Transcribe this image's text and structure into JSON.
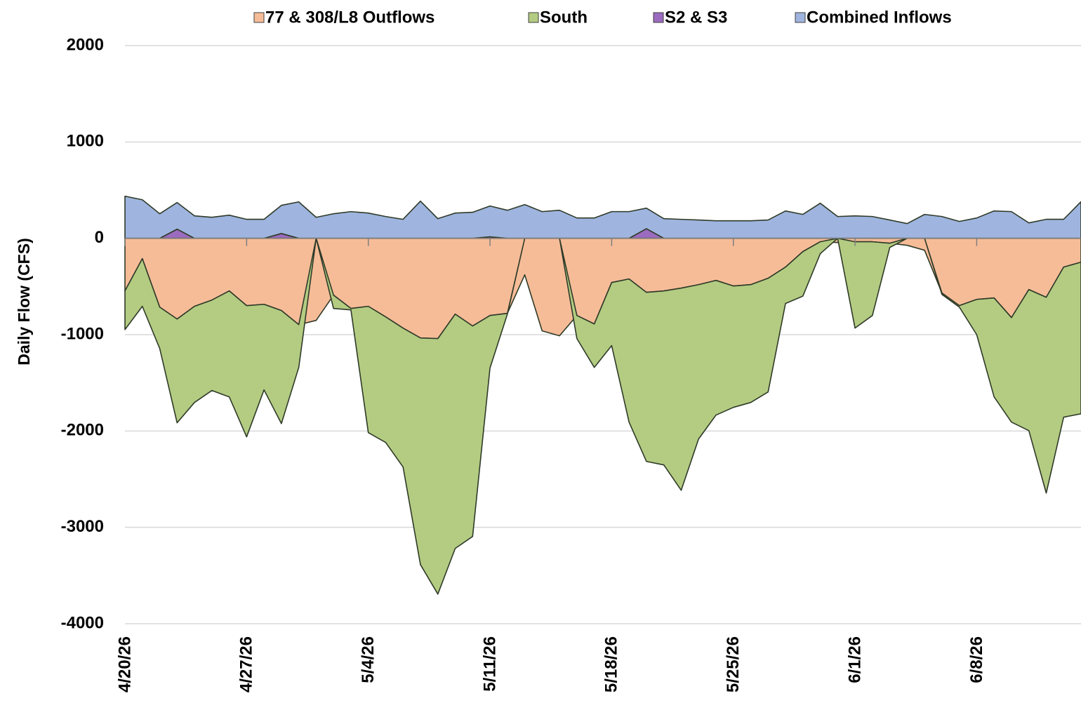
{
  "chart_data": {
    "type": "area",
    "stacked": true,
    "y_label": "Daily Flow (CFS)",
    "categories": [
      "4/20/26",
      null,
      null,
      null,
      null,
      null,
      null,
      "4/27/26",
      null,
      null,
      null,
      null,
      null,
      null,
      "5/4/26",
      null,
      null,
      null,
      null,
      null,
      null,
      "5/11/26",
      null,
      null,
      null,
      null,
      null,
      null,
      "5/18/26",
      null,
      null,
      null,
      null,
      null,
      null,
      "5/25/26",
      null,
      null,
      null,
      null,
      null,
      null,
      "6/1/26",
      null,
      null,
      null,
      null,
      null,
      null,
      "6/8/26",
      null,
      null,
      null,
      null,
      null,
      null
    ],
    "series": [
      {
        "name": "77 & 308/L8 Outflows",
        "color": "#f6bc98",
        "values": [
          -546,
          -211,
          -714,
          -838,
          -706,
          -641,
          -546,
          -699,
          -685,
          -750,
          -896,
          -852,
          -590,
          -728,
          -706,
          -816,
          -932,
          -1034,
          -1041,
          -787,
          -910,
          -801,
          -779,
          -379,
          -961,
          -1012,
          -801,
          -889,
          -459,
          -422,
          -561,
          -546,
          -517,
          -481,
          -437,
          -495,
          -481,
          -415,
          -299,
          -138,
          -36,
          -44,
          -36,
          -36,
          -51,
          -73,
          -124,
          -568,
          -699,
          -634,
          -619,
          -823,
          -532,
          -612,
          -299,
          -248
        ]
      },
      {
        "name": "South",
        "color": "#b3cc82",
        "values": [
          -401,
          -495,
          -429,
          -1077,
          -998,
          -939,
          -1100,
          -1362,
          -888,
          -1173,
          -444,
          0,
          -138,
          -15,
          -1311,
          -1303,
          -1442,
          -2353,
          -2652,
          -2432,
          -2185,
          -546,
          -8,
          0,
          0,
          0,
          -240,
          -451,
          -655,
          -1486,
          -1755,
          -1806,
          -2098,
          -1602,
          -1398,
          -1260,
          -1223,
          -1180,
          -378,
          -462,
          -124,
          0,
          -896,
          -765,
          -44,
          0,
          0,
          -15,
          -15,
          -366,
          -1027,
          -1085,
          -1464,
          -2032,
          -1558,
          -1573
        ]
      },
      {
        "name": "S2 & S3",
        "color": "#9b6bbf",
        "values": [
          0,
          0,
          0,
          95,
          0,
          0,
          0,
          0,
          0,
          50,
          0,
          0,
          0,
          0,
          0,
          0,
          0,
          0,
          0,
          0,
          0,
          15,
          0,
          0,
          0,
          0,
          0,
          0,
          0,
          0,
          100,
          0,
          0,
          0,
          0,
          0,
          0,
          0,
          0,
          0,
          0,
          0,
          0,
          0,
          0,
          0,
          0,
          0,
          0,
          0,
          0,
          0,
          0,
          0,
          0,
          0
        ]
      },
      {
        "name": "Combined Inflows",
        "color": "#9fb5df",
        "values": [
          437,
          400,
          255,
          276,
          233,
          218,
          240,
          197,
          197,
          292,
          378,
          218,
          255,
          277,
          262,
          226,
          197,
          386,
          204,
          262,
          270,
          320,
          291,
          350,
          277,
          291,
          211,
          211,
          277,
          277,
          213,
          204,
          197,
          190,
          182,
          182,
          182,
          190,
          284,
          248,
          364,
          226,
          233,
          226,
          190,
          153,
          248,
          226,
          175,
          211,
          284,
          277,
          160,
          197,
          197,
          380
        ]
      }
    ],
    "ylim": [
      -4000,
      2000
    ],
    "yticks": [
      -4000,
      -3000,
      -2000,
      -1000,
      0,
      1000,
      2000
    ],
    "grid": true
  }
}
